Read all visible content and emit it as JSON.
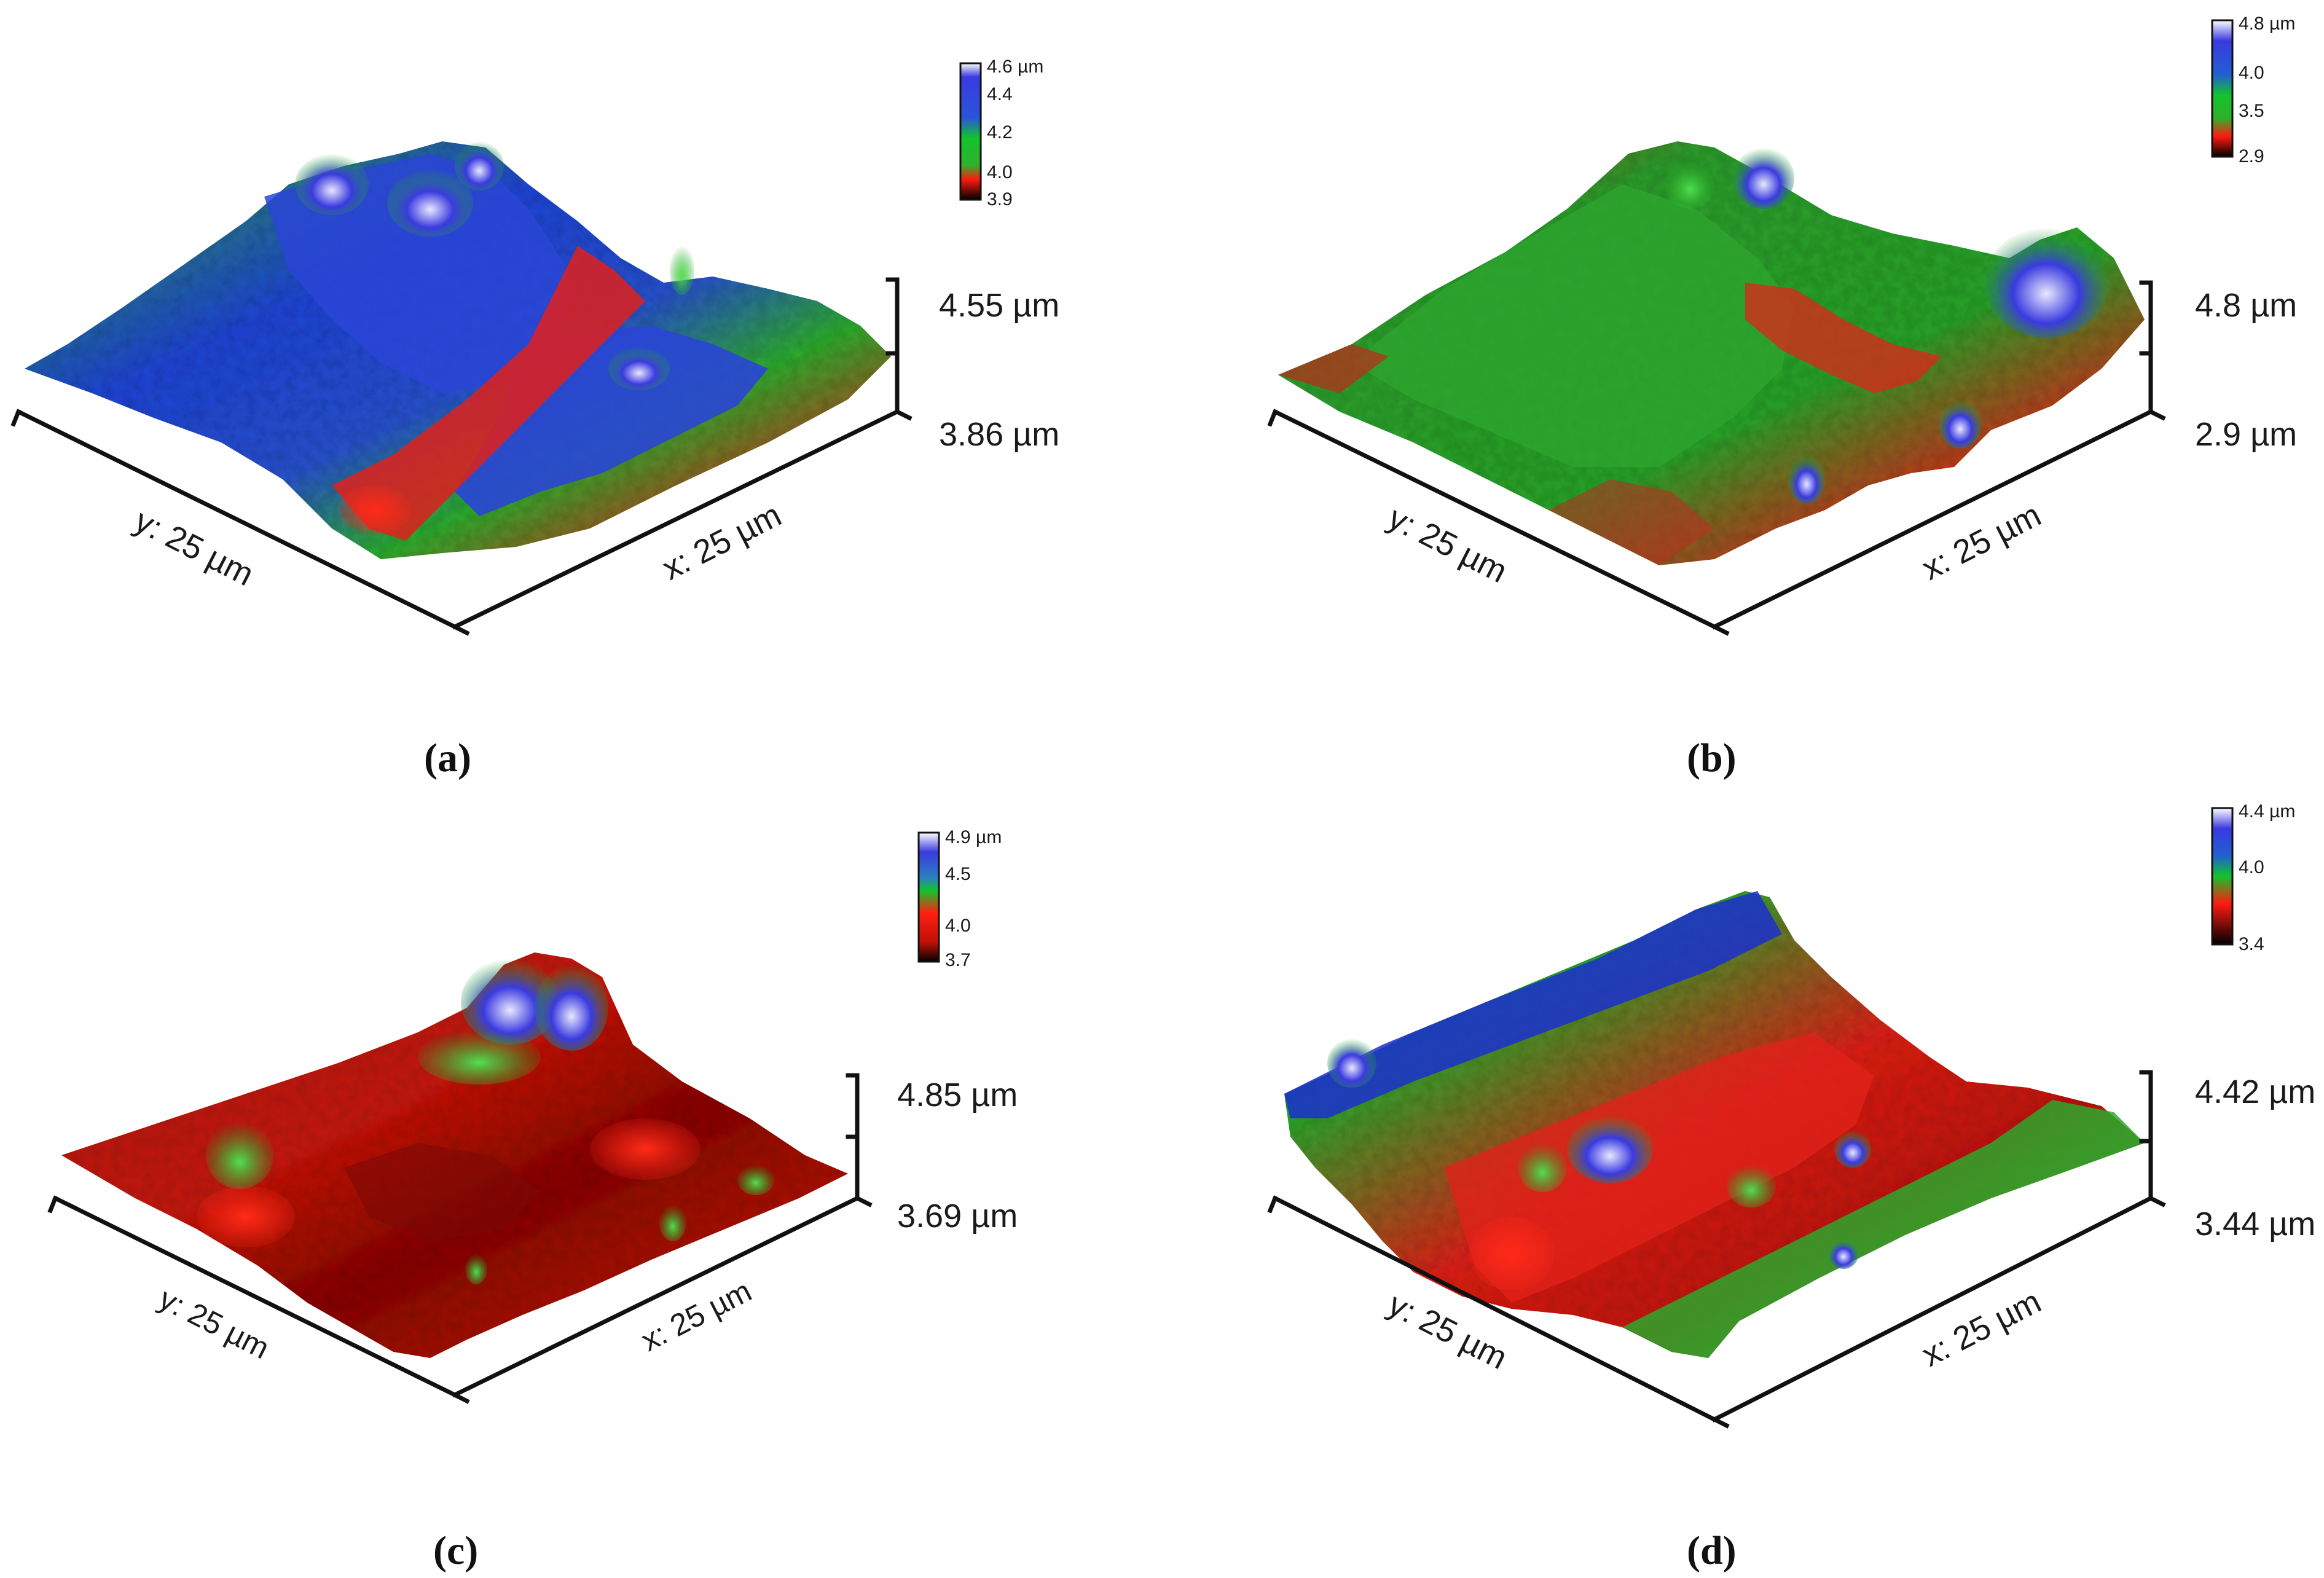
{
  "figure": {
    "panels": [
      {
        "id": "a",
        "label": "(a)",
        "x_axis_label": "x: 25 µm",
        "y_axis_label": "y: 25 µm",
        "z_max_label": "4.55 µm",
        "z_min_label": "3.86 µm",
        "colorbar": {
          "ticks": [
            "4.6 µm",
            "4.4",
            "4.2",
            "4.0",
            "3.9"
          ]
        },
        "dominant_colors": [
          "#1f3fd6",
          "#2fae2f",
          "#e0201a"
        ]
      },
      {
        "id": "b",
        "label": "(b)",
        "x_axis_label": "x: 25 µm",
        "y_axis_label": "y: 25 µm",
        "z_max_label": "4.8 µm",
        "z_min_label": "2.9 µm",
        "colorbar": {
          "ticks": [
            "4.8 µm",
            "4.0",
            "3.5",
            "2.9"
          ]
        },
        "dominant_colors": [
          "#2f9f2f",
          "#2a4bd8",
          "#d62a1c"
        ]
      },
      {
        "id": "c",
        "label": "(c)",
        "x_axis_label": "x: 25 µm",
        "y_axis_label": "y: 25 µm",
        "z_max_label": "4.85 µm",
        "z_min_label": "3.69 µm",
        "colorbar": {
          "ticks": [
            "4.9 µm",
            "4.5",
            "4.0",
            "3.7"
          ]
        },
        "dominant_colors": [
          "#c81a12",
          "#2fb02f",
          "#3040d0"
        ]
      },
      {
        "id": "d",
        "label": "(d)",
        "x_axis_label": "x: 25 µm",
        "y_axis_label": "y: 25 µm",
        "z_max_label": "4.42 µm",
        "z_min_label": "3.44 µm",
        "colorbar": {
          "ticks": [
            "4.4 µm",
            "4.0",
            "3.4"
          ]
        },
        "dominant_colors": [
          "#1c2fcf",
          "#2da82d",
          "#e0221a"
        ]
      }
    ]
  }
}
